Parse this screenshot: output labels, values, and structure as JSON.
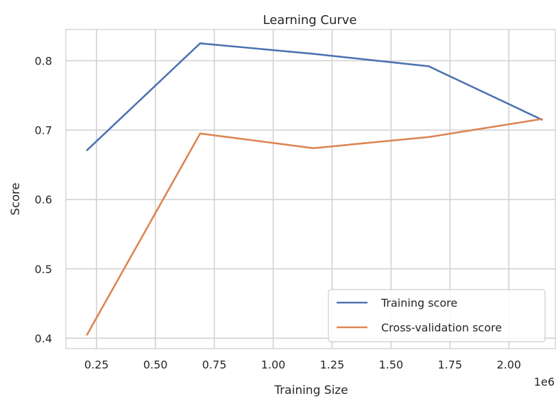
{
  "chart_data": {
    "type": "line",
    "title": "Learning Curve",
    "xlabel": "Training Size",
    "ylabel": "Score",
    "x_offset_label": "1e6",
    "x_ticks": [
      0.25,
      0.5,
      0.75,
      1.0,
      1.25,
      1.5,
      1.75,
      2.0
    ],
    "x_tick_labels": [
      "0.25",
      "0.50",
      "0.75",
      "1.00",
      "1.25",
      "1.50",
      "1.75",
      "2.00"
    ],
    "y_ticks": [
      0.4,
      0.5,
      0.6,
      0.7,
      0.8
    ],
    "y_tick_labels": [
      "0.4",
      "0.5",
      "0.6",
      "0.7",
      "0.8"
    ],
    "xlim": [
      0.12,
      2.2
    ],
    "ylim": [
      0.385,
      0.845
    ],
    "grid": true,
    "legend_position": "lower-right",
    "x": [
      0.21,
      0.69,
      1.17,
      1.66,
      2.14
    ],
    "series": [
      {
        "name": "Training score",
        "color": "#4c72b0",
        "values": [
          0.671,
          0.825,
          0.81,
          0.792,
          0.715
        ]
      },
      {
        "name": "Cross-validation score",
        "color": "#dd8452",
        "values": [
          0.405,
          0.695,
          0.674,
          0.69,
          0.716
        ]
      }
    ]
  }
}
